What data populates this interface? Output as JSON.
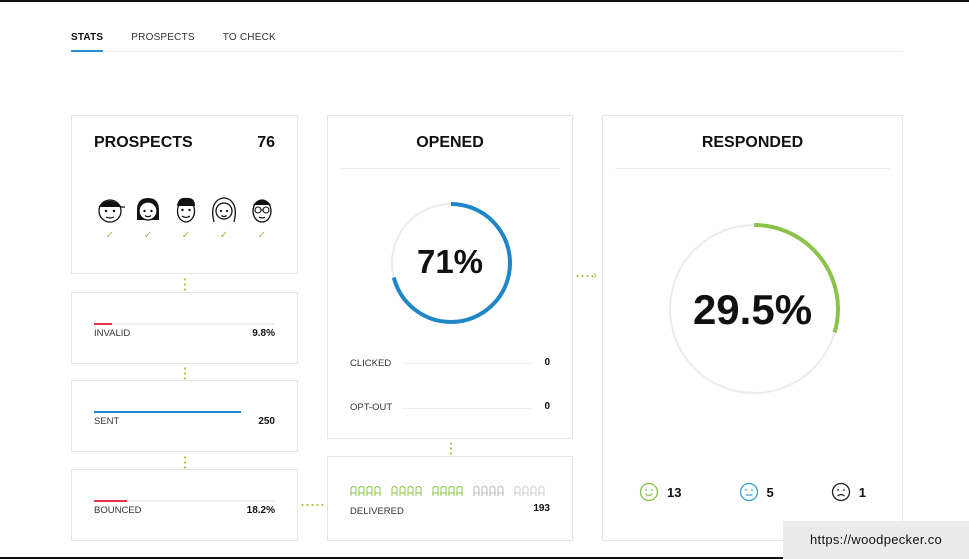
{
  "tabs": [
    {
      "label": "STATS",
      "active": true
    },
    {
      "label": "PROSPECTS",
      "active": false
    },
    {
      "label": "TO CHECK",
      "active": false
    }
  ],
  "prospects": {
    "title": "PROSPECTS",
    "count": "76"
  },
  "invalid": {
    "label": "INVALID",
    "value": "9.8%",
    "fill": 0.098,
    "color": "#e8334a"
  },
  "sent": {
    "label": "SENT",
    "value": "250",
    "fill": 0.9,
    "color": "#1f86c8"
  },
  "bounced": {
    "label": "BOUNCED",
    "value": "18.2%",
    "fill": 0.182,
    "color": "#e8334a"
  },
  "opened": {
    "title": "OPENED",
    "percent": "71%",
    "ratio": 0.71,
    "color": "#1f86c8",
    "rows": [
      {
        "label": "CLICKED",
        "value": "0"
      },
      {
        "label": "OPT-OUT",
        "value": "0"
      }
    ]
  },
  "delivered": {
    "label": "DELIVERED",
    "value": "193"
  },
  "responded": {
    "title": "RESPONDED",
    "percent": "29.5%",
    "ratio": 0.295,
    "color": "#8bc34a",
    "moods": [
      {
        "name": "happy",
        "value": "13",
        "color": "#8bc34a"
      },
      {
        "name": "neutral",
        "value": "5",
        "color": "#3aa0d6"
      },
      {
        "name": "sad",
        "value": "1",
        "color": "#222222"
      }
    ]
  },
  "watermark": "https://woodpecker.co"
}
